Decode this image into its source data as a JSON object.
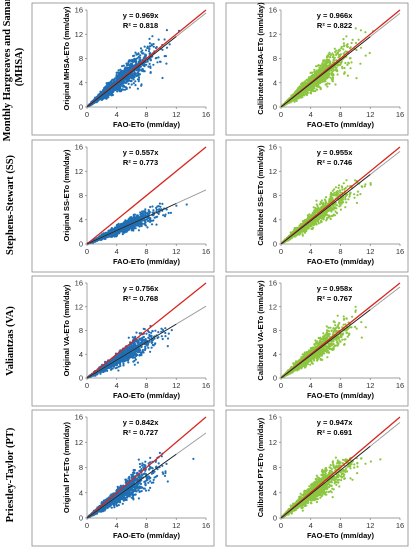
{
  "colors": {
    "original_points": "#1f6fb5",
    "calibrated_points": "#8cc63f",
    "one_to_one_line": "#d6261f",
    "fit_line_original": "#222222",
    "fit_line_calibrated": "#333333",
    "trend_gray": "#9a9a9a"
  },
  "row_labels": [
    "Monthly Hargreaves and Samani (MHSA)",
    "Stephens-Stewart (SS)",
    "Valiantzas (VA)",
    "Priestley-Taylor (PT)"
  ],
  "chart_data": [
    {
      "type": "scatter",
      "panel": "MHSA original",
      "xlabel": "FAO-ETo (mm/day)",
      "ylabel": "Original MHSA-ETo (mm/day)",
      "xlim": [
        0,
        16
      ],
      "ylim": [
        0,
        16
      ],
      "xticks": [
        0,
        4,
        8,
        12,
        16
      ],
      "yticks": [
        0,
        4,
        8,
        12,
        16
      ],
      "equation": "y = 0.969x",
      "r2": "R² = 0.818",
      "slope": 0.969,
      "cloud": {
        "spread": 0.17,
        "ycap": null,
        "xmax": 13.5
      },
      "series": [
        {
          "name": "",
          "values": []
        }
      ],
      "lines": [
        "1:1",
        "fit"
      ],
      "grid": false,
      "legend": "none"
    },
    {
      "type": "scatter",
      "panel": "MHSA calibrated",
      "xlabel": "FAO-ETo (mm/day)",
      "ylabel": "Calibrated MHSA-ETo (mm/day)",
      "xlim": [
        0,
        16
      ],
      "ylim": [
        0,
        16
      ],
      "xticks": [
        0,
        4,
        8,
        12,
        16
      ],
      "yticks": [
        0,
        4,
        8,
        12,
        16
      ],
      "equation": "y = 0.966x",
      "r2": "R² = 0.822",
      "slope": 0.966,
      "cloud": {
        "spread": 0.17,
        "ycap": null,
        "xmax": 13.5
      },
      "series": [
        {
          "name": "",
          "values": []
        }
      ],
      "lines": [
        "1:1",
        "fit"
      ],
      "grid": false,
      "legend": "none"
    },
    {
      "type": "scatter",
      "panel": "SS original",
      "xlabel": "FAO-ETo (mm/day)",
      "ylabel": "Original SS-ETo (mm/day)",
      "xlim": [
        0,
        16
      ],
      "ylim": [
        0,
        16
      ],
      "xticks": [
        0,
        4,
        8,
        12,
        16
      ],
      "yticks": [
        0,
        4,
        8,
        12,
        16
      ],
      "equation": "y = 0.557x",
      "r2": "R² = 0.773",
      "slope": 0.557,
      "cloud": {
        "spread": 0.15,
        "ycap": 7.2,
        "xmax": 14.5
      },
      "series": [
        {
          "name": "",
          "values": []
        }
      ],
      "lines": [
        "1:1",
        "fit"
      ],
      "grid": false,
      "legend": "none"
    },
    {
      "type": "scatter",
      "panel": "SS calibrated",
      "xlabel": "FAO-ETo (mm/day)",
      "ylabel": "Calibrated SS-ETo (mm/day)",
      "xlim": [
        0,
        16
      ],
      "ylim": [
        0,
        16
      ],
      "xticks": [
        0,
        4,
        8,
        12,
        16
      ],
      "yticks": [
        0,
        4,
        8,
        12,
        16
      ],
      "equation": "y = 0.955x",
      "r2": "R² = 0.746",
      "slope": 0.955,
      "cloud": {
        "spread": 0.15,
        "ycap": 10.6,
        "xmax": 14.5
      },
      "series": [
        {
          "name": "",
          "values": []
        }
      ],
      "lines": [
        "1:1",
        "fit"
      ],
      "grid": false,
      "legend": "none"
    },
    {
      "type": "scatter",
      "panel": "VA original",
      "xlabel": "FAO-ETo (mm/day)",
      "ylabel": "Original VA-ETo (mm/day)",
      "xlim": [
        0,
        16
      ],
      "ylim": [
        0,
        16
      ],
      "xticks": [
        0,
        4,
        8,
        12,
        16
      ],
      "yticks": [
        0,
        4,
        8,
        12,
        16
      ],
      "equation": "y = 0.756x",
      "r2": "R² = 0.768",
      "slope": 0.756,
      "cloud": {
        "spread": 0.16,
        "ycap": 9.2,
        "xmax": 14.5
      },
      "series": [
        {
          "name": "",
          "values": []
        }
      ],
      "lines": [
        "1:1",
        "fit"
      ],
      "grid": false,
      "legend": "none"
    },
    {
      "type": "scatter",
      "panel": "VA calibrated",
      "xlabel": "FAO-ETo (mm/day)",
      "ylabel": "Calibrated VA-ETo (mm/day)",
      "xlim": [
        0,
        16
      ],
      "ylim": [
        0,
        16
      ],
      "xticks": [
        0,
        4,
        8,
        12,
        16
      ],
      "yticks": [
        0,
        4,
        8,
        12,
        16
      ],
      "equation": "y = 0.958x",
      "r2": "R² = 0.767",
      "slope": 0.958,
      "cloud": {
        "spread": 0.16,
        "ycap": 12.0,
        "xmax": 14.5
      },
      "series": [
        {
          "name": "",
          "values": []
        }
      ],
      "lines": [
        "1:1",
        "fit"
      ],
      "grid": false,
      "legend": "none"
    },
    {
      "type": "scatter",
      "panel": "PT original",
      "xlabel": "FAO-ETo (mm/day)",
      "ylabel": "Original PT-ETo (mm/day)",
      "xlim": [
        0,
        16
      ],
      "ylim": [
        0,
        16
      ],
      "xticks": [
        0,
        4,
        8,
        12,
        16
      ],
      "yticks": [
        0,
        4,
        8,
        12,
        16
      ],
      "equation": "y = 0.842x",
      "r2": "R² = 0.727",
      "slope": 0.842,
      "cloud": {
        "spread": 0.17,
        "ycap": 10.4,
        "xmax": 14.5
      },
      "series": [
        {
          "name": "",
          "values": []
        }
      ],
      "lines": [
        "1:1",
        "fit"
      ],
      "grid": false,
      "legend": "none"
    },
    {
      "type": "scatter",
      "panel": "PT calibrated",
      "xlabel": "FAO-ETo (mm/day)",
      "ylabel": "Calibrated PT-ETo (mm/day)",
      "xlim": [
        0,
        16
      ],
      "ylim": [
        0,
        16
      ],
      "xticks": [
        0,
        4,
        8,
        12,
        16
      ],
      "yticks": [
        0,
        4,
        8,
        12,
        16
      ],
      "equation": "y = 0.947x",
      "r2": "R² = 0.691",
      "slope": 0.947,
      "cloud": {
        "spread": 0.17,
        "ycap": 9.6,
        "xmax": 14.5
      },
      "series": [
        {
          "name": "",
          "values": []
        }
      ],
      "lines": [
        "1:1",
        "fit"
      ],
      "grid": false,
      "legend": "none"
    }
  ]
}
